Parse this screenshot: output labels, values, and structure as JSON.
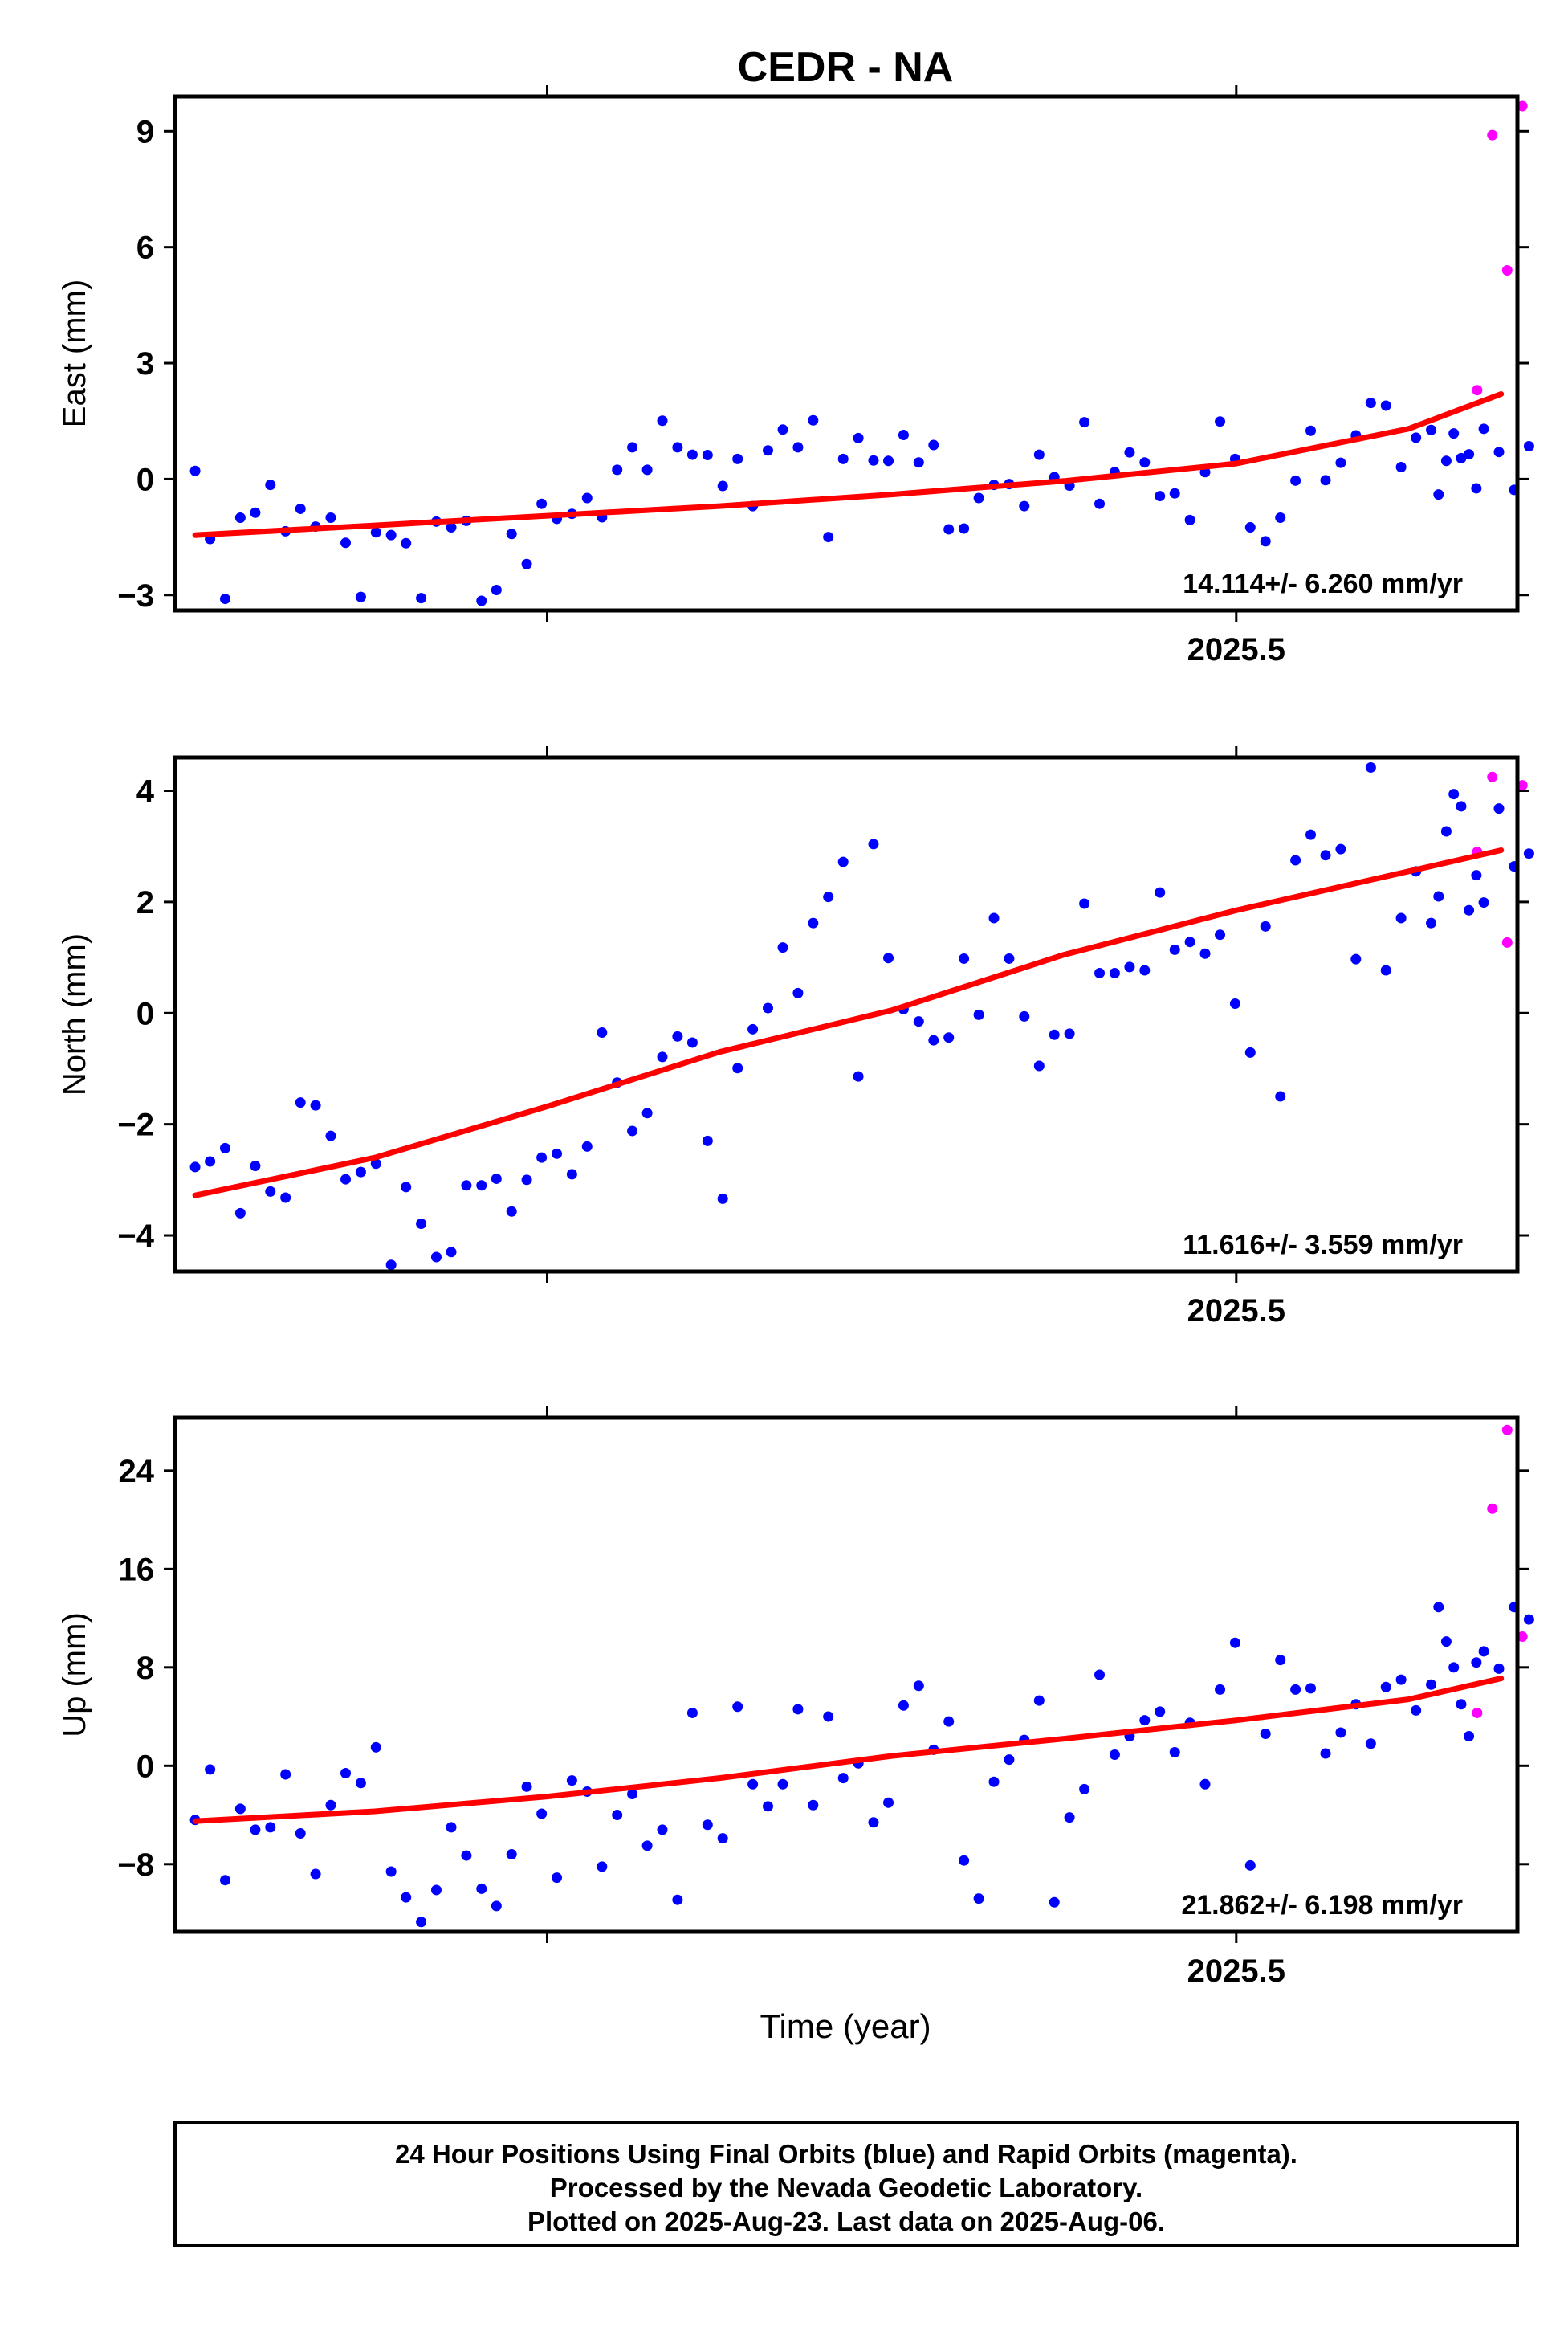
{
  "title": "CEDR - NA",
  "xlabel": "Time (year)",
  "footer": {
    "line1": "24 Hour Positions Using Final Orbits (blue) and Rapid Orbits (magenta).",
    "line2": "Processed by the Nevada Geodetic Laboratory.",
    "line3": "Plotted on 2025-Aug-23. Last data on 2025-Aug-06."
  },
  "colors": {
    "final": "#0000ff",
    "rapid": "#ff00ff",
    "fit": "#ff0000"
  },
  "chart_data": [
    {
      "type": "scatter",
      "ylabel": "East (mm)",
      "rate": "14.114+/- 6.260 mm/yr",
      "xlim": [
        2025.115,
        2025.602
      ],
      "ylim": [
        -3.4,
        9.9
      ],
      "x_ticks": [
        {
          "value": 2025.5,
          "label": "2025.5"
        }
      ],
      "y_ticks": [
        {
          "value": -3,
          "label": "−3"
        },
        {
          "value": 0,
          "label": "0"
        },
        {
          "value": 3,
          "label": "3"
        },
        {
          "value": 6,
          "label": "6"
        },
        {
          "value": 9,
          "label": "9"
        }
      ],
      "fit": {
        "x": [
          2025.1223,
          2025.1875,
          2025.25,
          2025.3125,
          2025.375,
          2025.4375,
          2025.5,
          2025.5625,
          2025.5961
        ],
        "y": [
          -1.45,
          -1.2,
          -0.95,
          -0.7,
          -0.4,
          -0.05,
          0.4,
          1.3,
          2.2
        ]
      },
      "final": {
        "x": [
          2025.1223,
          2025.1277,
          2025.1332,
          2025.1387,
          2025.1441,
          2025.1496,
          2025.1551,
          2025.1605,
          2025.166,
          2025.1715,
          2025.1769,
          2025.1824,
          2025.1879,
          2025.1934,
          2025.1988,
          2025.2043,
          2025.2098,
          2025.2152,
          2025.2207,
          2025.2262,
          2025.2316,
          2025.2371,
          2025.2426,
          2025.248,
          2025.2535,
          2025.259,
          2025.2645,
          2025.2699,
          2025.2754,
          2025.2809,
          2025.2863,
          2025.2918,
          2025.2973,
          2025.3027,
          2025.3082,
          2025.3137,
          2025.3191,
          2025.3246,
          2025.3301,
          2025.3355,
          2025.341,
          2025.3465,
          2025.352,
          2025.3574,
          2025.3629,
          2025.3684,
          2025.3738,
          2025.3793,
          2025.3848,
          2025.3902,
          2025.3957,
          2025.4012,
          2025.4066,
          2025.4121,
          2025.4176,
          2025.4231,
          2025.4285,
          2025.434,
          2025.4395,
          2025.4449,
          2025.4504,
          2025.4559,
          2025.4613,
          2025.4668,
          2025.4723,
          2025.4777,
          2025.4832,
          2025.4887,
          2025.4941,
          2025.4996,
          2025.5051,
          2025.5106,
          2025.516,
          2025.5215,
          2025.527,
          2025.5324,
          2025.5379,
          2025.5434,
          2025.5488,
          2025.5543,
          2025.5598,
          2025.5652,
          2025.5707,
          2025.5762,
          2025.5816,
          2025.5871
        ],
        "y": [
          0.21,
          -1.55,
          -3.1,
          -1.0,
          -0.87,
          -0.15,
          -1.35,
          -0.77,
          -1.23,
          -1.0,
          -1.65,
          -3.05,
          -1.38,
          -1.45,
          -1.66,
          -3.08,
          -1.1,
          -1.25,
          -1.08,
          -3.15,
          -2.87,
          -1.42,
          -2.2,
          -0.64,
          -1.03,
          -0.9,
          -0.49,
          -0.99,
          0.24,
          0.82,
          0.24,
          1.51,
          0.82,
          0.63,
          0.62,
          -0.18,
          0.52,
          -0.7,
          0.74,
          1.28,
          0.82,
          1.52,
          -1.5,
          0.52,
          1.06,
          0.48,
          0.47,
          1.14,
          0.43,
          0.88,
          -1.3,
          -1.28,
          -0.49,
          -0.15,
          -0.13,
          -0.7,
          0.63,
          0.05,
          -0.17,
          1.47,
          -0.64,
          0.18,
          0.69,
          0.43,
          -0.44,
          -0.37,
          -1.06,
          0.18,
          1.49,
          0.52,
          -1.25,
          -1.61,
          -1.0,
          -0.04,
          1.25,
          -0.03,
          0.42,
          1.13,
          1.97,
          1.9,
          0.31,
          1.07,
          1.27,
          0.47,
          0.54,
          -0.24
        ]
      },
      "final_tail": {
        "x": [
          2025.5734,
          2025.5789,
          2025.5844,
          2025.5898,
          2025.5953,
          2025.6008,
          2025.6062
        ],
        "y": [
          -0.4,
          1.18,
          0.64,
          1.3,
          0.7,
          -0.28,
          0.85
        ]
      },
      "rapid": {
        "x": [
          2025.5874,
          2025.5929,
          2025.5983,
          2025.6038
        ],
        "y": [
          2.3,
          8.9,
          5.4,
          9.65
        ]
      }
    },
    {
      "type": "scatter",
      "ylabel": "North (mm)",
      "rate": "11.616+/- 3.559 mm/yr",
      "xlim": [
        2025.115,
        2025.602
      ],
      "ylim": [
        -4.65,
        4.6
      ],
      "x_ticks": [
        {
          "value": 2025.5,
          "label": "2025.5"
        }
      ],
      "y_ticks": [
        {
          "value": -4,
          "label": "−4"
        },
        {
          "value": -2,
          "label": "−2"
        },
        {
          "value": 0,
          "label": "0"
        },
        {
          "value": 2,
          "label": "2"
        },
        {
          "value": 4,
          "label": "4"
        }
      ],
      "fit": {
        "x": [
          2025.1223,
          2025.1875,
          2025.25,
          2025.3125,
          2025.375,
          2025.4375,
          2025.5,
          2025.5625,
          2025.5961
        ],
        "y": [
          -3.28,
          -2.6,
          -1.68,
          -0.7,
          0.05,
          1.05,
          1.85,
          2.55,
          2.93
        ]
      },
      "final": {
        "x": [
          2025.1223,
          2025.1277,
          2025.1332,
          2025.1387,
          2025.1441,
          2025.1496,
          2025.1551,
          2025.1605,
          2025.166,
          2025.1715,
          2025.1769,
          2025.1824,
          2025.1879,
          2025.1934,
          2025.1988,
          2025.2043,
          2025.2098,
          2025.2152,
          2025.2207,
          2025.2262,
          2025.2316,
          2025.2371,
          2025.2426,
          2025.248,
          2025.2535,
          2025.259,
          2025.2645,
          2025.2699,
          2025.2754,
          2025.2809,
          2025.2863,
          2025.2918,
          2025.2973,
          2025.3027,
          2025.3082,
          2025.3137,
          2025.3191,
          2025.3246,
          2025.3301,
          2025.3355,
          2025.341,
          2025.3465,
          2025.352,
          2025.3574,
          2025.3629,
          2025.3684,
          2025.3738,
          2025.3793,
          2025.3848,
          2025.3902,
          2025.3957,
          2025.4012,
          2025.4066,
          2025.4121,
          2025.4176,
          2025.4231,
          2025.4285,
          2025.434,
          2025.4395,
          2025.4449,
          2025.4504,
          2025.4559,
          2025.4613,
          2025.4668,
          2025.4723,
          2025.4777,
          2025.4832,
          2025.4887,
          2025.4941,
          2025.4996,
          2025.5051,
          2025.5106,
          2025.516,
          2025.5215,
          2025.527,
          2025.5324,
          2025.5379,
          2025.5434,
          2025.5488,
          2025.5543,
          2025.5598,
          2025.5652,
          2025.5707,
          2025.5762,
          2025.5816,
          2025.5871
        ],
        "y": [
          -2.77,
          -2.67,
          -2.43,
          -3.6,
          -2.75,
          -3.21,
          -3.32,
          -1.61,
          -1.66,
          -2.21,
          -2.99,
          -2.86,
          -2.71,
          -4.53,
          -3.13,
          -3.79,
          -4.39,
          -4.3,
          -3.1,
          -3.1,
          -2.98,
          -3.57,
          -3.0,
          -2.6,
          -2.53,
          -2.9,
          -2.4,
          -0.35,
          -1.25,
          -2.12,
          -1.8,
          -0.79,
          -0.42,
          -0.53,
          -2.3,
          -3.34,
          -0.99,
          -0.29,
          0.09,
          1.18,
          0.36,
          1.62,
          2.09,
          2.72,
          -1.14,
          3.04,
          0.99,
          0.07,
          -0.15,
          -0.49,
          -0.44,
          0.98,
          -0.03,
          1.71,
          0.98,
          -0.06,
          -0.95,
          -0.39,
          -0.37,
          1.97,
          0.72,
          0.72,
          0.83,
          0.77,
          2.17,
          1.14,
          1.28,
          1.07,
          1.41,
          0.17,
          -0.71,
          1.56,
          -1.5,
          2.75,
          3.21,
          2.84,
          2.95,
          0.97,
          4.42,
          0.77,
          1.71,
          2.55,
          1.62,
          3.27,
          3.72,
          2.48
        ]
      },
      "final_tail": {
        "x": [
          2025.5734,
          2025.5789,
          2025.5844,
          2025.5898,
          2025.5953,
          2025.6008,
          2025.6062
        ],
        "y": [
          2.1,
          3.94,
          1.85,
          1.99,
          3.68,
          2.64,
          2.87
        ]
      },
      "rapid": {
        "x": [
          2025.5874,
          2025.5929,
          2025.5983,
          2025.6038
        ],
        "y": [
          2.9,
          4.25,
          1.27,
          4.1
        ]
      }
    },
    {
      "type": "scatter",
      "ylabel": "Up (mm)",
      "rate": "21.862+/- 6.198 mm/yr",
      "xlim": [
        2025.115,
        2025.602
      ],
      "ylim": [
        -13.5,
        28.3
      ],
      "x_ticks": [
        {
          "value": 2025.5,
          "label": "2025.5"
        }
      ],
      "y_ticks": [
        {
          "value": -8,
          "label": "−8"
        },
        {
          "value": 0,
          "label": "0"
        },
        {
          "value": 8,
          "label": "8"
        },
        {
          "value": 16,
          "label": "16"
        },
        {
          "value": 24,
          "label": "24"
        }
      ],
      "fit": {
        "x": [
          2025.1223,
          2025.1875,
          2025.25,
          2025.3125,
          2025.375,
          2025.4375,
          2025.5,
          2025.5625,
          2025.5961
        ],
        "y": [
          -4.5,
          -3.7,
          -2.5,
          -1.0,
          0.8,
          2.2,
          3.7,
          5.4,
          7.1
        ]
      },
      "final": {
        "x": [
          2025.1223,
          2025.1277,
          2025.1332,
          2025.1387,
          2025.1441,
          2025.1496,
          2025.1551,
          2025.1605,
          2025.166,
          2025.1715,
          2025.1769,
          2025.1824,
          2025.1879,
          2025.1934,
          2025.1988,
          2025.2043,
          2025.2098,
          2025.2152,
          2025.2207,
          2025.2262,
          2025.2316,
          2025.2371,
          2025.2426,
          2025.248,
          2025.2535,
          2025.259,
          2025.2645,
          2025.2699,
          2025.2754,
          2025.2809,
          2025.2863,
          2025.2918,
          2025.2973,
          2025.3027,
          2025.3082,
          2025.3137,
          2025.3191,
          2025.3246,
          2025.3301,
          2025.3355,
          2025.341,
          2025.3465,
          2025.352,
          2025.3574,
          2025.3629,
          2025.3684,
          2025.3738,
          2025.3793,
          2025.3848,
          2025.3902,
          2025.3957,
          2025.4012,
          2025.4066,
          2025.4121,
          2025.4176,
          2025.4231,
          2025.4285,
          2025.434,
          2025.4395,
          2025.4449,
          2025.4504,
          2025.4559,
          2025.4613,
          2025.4668,
          2025.4723,
          2025.4777,
          2025.4832,
          2025.4887,
          2025.4941,
          2025.4996,
          2025.5051,
          2025.5106,
          2025.516,
          2025.5215,
          2025.527,
          2025.5324,
          2025.5379,
          2025.5434,
          2025.5488,
          2025.5543,
          2025.5598,
          2025.5652,
          2025.5707,
          2025.5762,
          2025.5816,
          2025.5871
        ],
        "y": [
          -4.4,
          -0.3,
          -9.3,
          -3.5,
          -5.2,
          -5.0,
          -0.7,
          -5.5,
          -8.8,
          -3.2,
          -0.6,
          -1.4,
          1.5,
          -8.6,
          -10.7,
          -12.7,
          -10.1,
          -5.0,
          -7.3,
          -10.0,
          -11.4,
          -7.2,
          -1.7,
          -3.9,
          -9.1,
          -1.2,
          -2.1,
          -8.2,
          -4.0,
          -2.3,
          -6.5,
          -5.2,
          -10.9,
          4.3,
          -4.8,
          -5.9,
          4.8,
          -1.5,
          -3.3,
          -1.5,
          4.6,
          -3.2,
          4.0,
          -1.0,
          0.2,
          -4.6,
          -3.0,
          4.9,
          6.5,
          1.3,
          3.6,
          -7.7,
          -10.8,
          -1.3,
          0.5,
          2.1,
          5.3,
          -11.1,
          -4.2,
          -1.9,
          7.4,
          0.9,
          2.4,
          3.7,
          4.4,
          1.1,
          3.5,
          -1.5,
          6.2,
          10.0,
          -8.1,
          2.6,
          8.6,
          6.2,
          6.3,
          1.0,
          2.7,
          5.0,
          1.8,
          6.4,
          7.0,
          4.5,
          6.6,
          10.1,
          5.0,
          8.4
        ]
      },
      "final_tail": {
        "x": [
          2025.5734,
          2025.5789,
          2025.5844,
          2025.5898,
          2025.5953,
          2025.6008,
          2025.6062
        ],
        "y": [
          12.9,
          8.0,
          2.4,
          9.3,
          7.9,
          12.9,
          11.9
        ]
      },
      "rapid": {
        "x": [
          2025.5874,
          2025.5929,
          2025.5983,
          2025.6038
        ],
        "y": [
          4.3,
          20.9,
          27.3,
          10.5
        ]
      }
    }
  ]
}
